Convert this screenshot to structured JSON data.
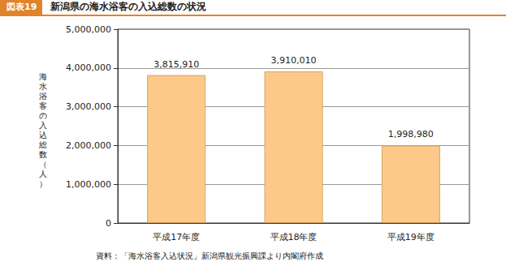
{
  "chart_data": {
    "type": "bar",
    "figure_label": "図表19",
    "title": "新潟県の海水浴客の入込総数の状況",
    "y_label": "海水浴客の入込総数（人）",
    "note": "資料：「海水浴客入込状況」新潟県観光振興課より内閣府作成",
    "categories": [
      "平成17年度",
      "平成18年度",
      "平成19年度"
    ],
    "values": [
      3815910,
      3910010,
      1998980
    ],
    "value_labels": [
      "3,815,910",
      "3,910,010",
      "1,998,980"
    ],
    "data_labels": true,
    "color": "#fdc98a",
    "ylim": [
      0,
      5000000
    ],
    "yticks": [
      0,
      {
        "value": 1000000,
        "label": "1,000,000"
      },
      {
        "value": 2000000,
        "label": "2,000,000"
      },
      {
        "value": 3000000,
        "label": "3,000,000"
      },
      {
        "value": 4000000,
        "label": "4,000,000"
      },
      {
        "value": 5000000,
        "label": "5,000,000"
      }
    ],
    "grid": true
  }
}
